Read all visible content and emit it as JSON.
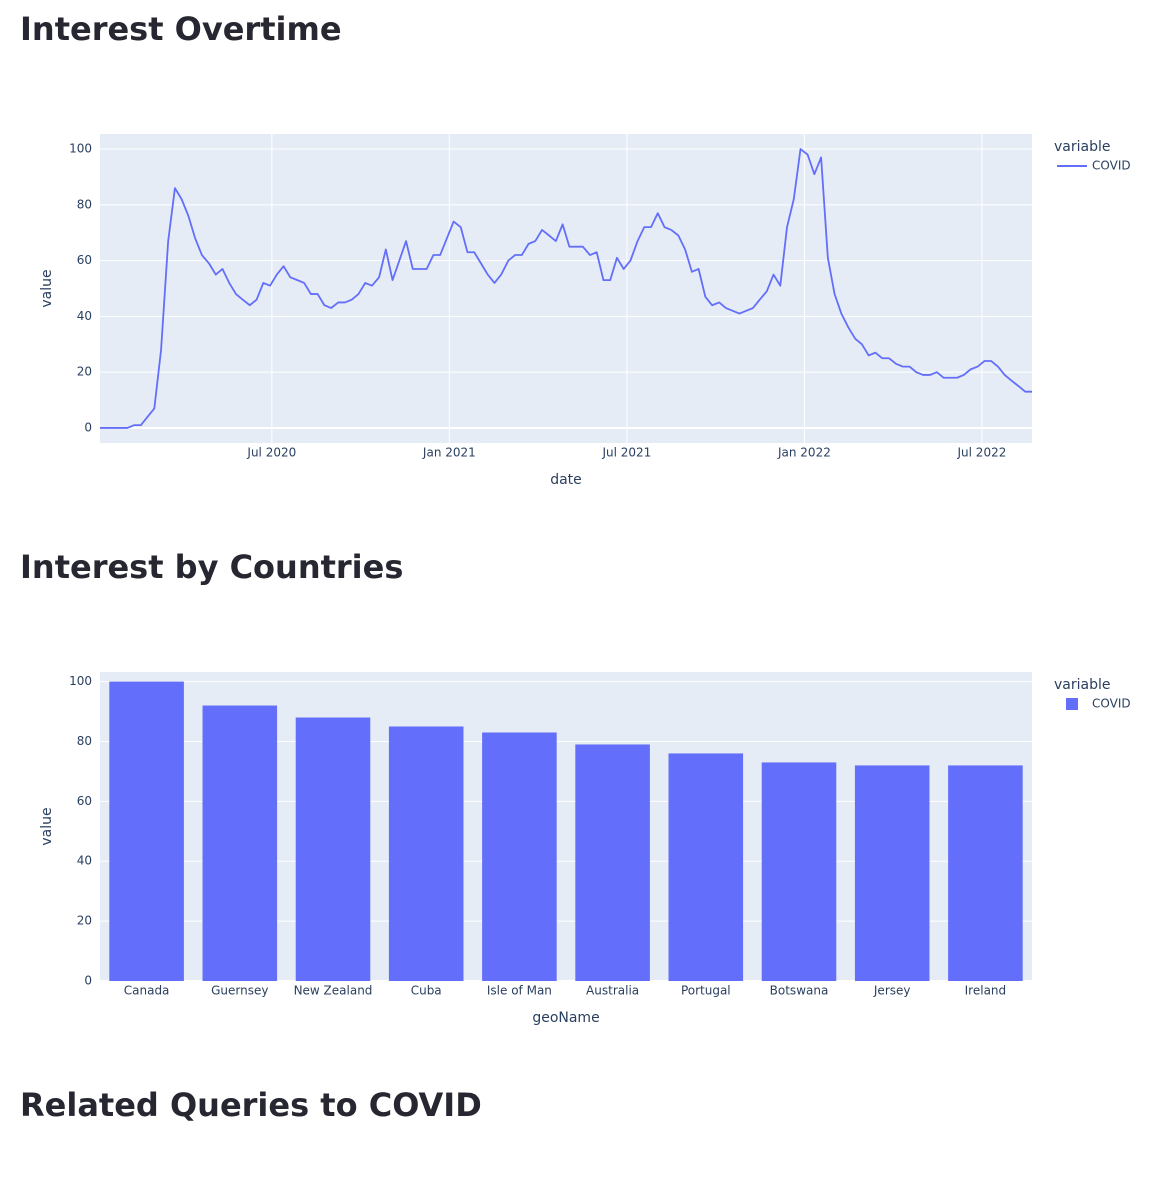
{
  "page": {
    "headings": [
      "Interest Overtime",
      "Interest by Countries",
      "Related Queries to COVID"
    ]
  },
  "chart_data": [
    {
      "type": "line",
      "xlabel": "date",
      "ylabel": "value",
      "legend_title": "variable",
      "x": [
        2020.016,
        2020.035,
        2020.054,
        2020.073,
        2020.093,
        2020.112,
        2020.131,
        2020.15,
        2020.169,
        2020.188,
        2020.208,
        2020.227,
        2020.246,
        2020.265,
        2020.284,
        2020.303,
        2020.323,
        2020.342,
        2020.361,
        2020.38,
        2020.399,
        2020.418,
        2020.438,
        2020.457,
        2020.476,
        2020.495,
        2020.514,
        2020.533,
        2020.552,
        2020.572,
        2020.591,
        2020.61,
        2020.629,
        2020.648,
        2020.667,
        2020.687,
        2020.706,
        2020.725,
        2020.744,
        2020.763,
        2020.782,
        2020.802,
        2020.821,
        2020.84,
        2020.859,
        2020.878,
        2020.897,
        2020.917,
        2020.936,
        2020.955,
        2020.974,
        2020.993,
        2021.012,
        2021.032,
        2021.051,
        2021.07,
        2021.089,
        2021.108,
        2021.127,
        2021.146,
        2021.166,
        2021.185,
        2021.204,
        2021.223,
        2021.242,
        2021.261,
        2021.281,
        2021.3,
        2021.319,
        2021.338,
        2021.357,
        2021.376,
        2021.396,
        2021.415,
        2021.434,
        2021.453,
        2021.472,
        2021.491,
        2021.51,
        2021.53,
        2021.549,
        2021.568,
        2021.587,
        2021.606,
        2021.625,
        2021.645,
        2021.664,
        2021.683,
        2021.702,
        2021.721,
        2021.74,
        2021.76,
        2021.779,
        2021.798,
        2021.817,
        2021.836,
        2021.855,
        2021.874,
        2021.894,
        2021.913,
        2021.932,
        2021.951,
        2021.97,
        2021.989,
        2022.009,
        2022.028,
        2022.047,
        2022.066,
        2022.085,
        2022.104,
        2022.124,
        2022.143,
        2022.162,
        2022.181,
        2022.2,
        2022.219,
        2022.238,
        2022.258,
        2022.277,
        2022.296,
        2022.315,
        2022.334,
        2022.354,
        2022.373,
        2022.392,
        2022.411,
        2022.43,
        2022.449,
        2022.468,
        2022.488,
        2022.507,
        2022.526,
        2022.545,
        2022.564,
        2022.583,
        2022.603,
        2022.622,
        2022.641
      ],
      "series": [
        {
          "name": "COVID",
          "color": "#636efa",
          "values": [
            0,
            0,
            0,
            0,
            0,
            1,
            1,
            4,
            7,
            28,
            67,
            86,
            82,
            76,
            68,
            62,
            59,
            55,
            57,
            52,
            48,
            46,
            44,
            46,
            52,
            51,
            55,
            58,
            54,
            53,
            52,
            48,
            48,
            44,
            43,
            45,
            45,
            46,
            48,
            52,
            51,
            54,
            64,
            53,
            60,
            67,
            57,
            57,
            57,
            62,
            62,
            68,
            74,
            72,
            63,
            63,
            59,
            55,
            52,
            55,
            60,
            62,
            62,
            66,
            67,
            71,
            69,
            67,
            73,
            65,
            65,
            65,
            62,
            63,
            53,
            53,
            61,
            57,
            60,
            67,
            72,
            72,
            77,
            72,
            71,
            69,
            64,
            56,
            57,
            47,
            44,
            45,
            43,
            42,
            41,
            42,
            43,
            46,
            49,
            55,
            51,
            72,
            82,
            100,
            98,
            91,
            97,
            61,
            48,
            41,
            36,
            32,
            30,
            26,
            27,
            25,
            25,
            23,
            22,
            22,
            20,
            19,
            19,
            20,
            18,
            18,
            18,
            19,
            21,
            22,
            24,
            24,
            22,
            19,
            17,
            15,
            13,
            13
          ]
        }
      ],
      "xlim": [
        2020.016,
        2022.641
      ],
      "xticks": [
        {
          "value": 2020.5,
          "label": "Jul 2020"
        },
        {
          "value": 2021.0,
          "label": "Jan 2021"
        },
        {
          "value": 2021.5,
          "label": "Jul 2021"
        },
        {
          "value": 2022.0,
          "label": "Jan 2022"
        },
        {
          "value": 2022.5,
          "label": "Jul 2022"
        }
      ],
      "ylim": [
        -5.4,
        105.4
      ],
      "yticks": [
        0,
        20,
        40,
        60,
        80,
        100
      ],
      "grid": true
    },
    {
      "type": "bar",
      "xlabel": "geoName",
      "ylabel": "value",
      "legend_title": "variable",
      "categories": [
        "Canada",
        "Guernsey",
        "New Zealand",
        "Cuba",
        "Isle of Man",
        "Australia",
        "Portugal",
        "Botswana",
        "Jersey",
        "Ireland"
      ],
      "series": [
        {
          "name": "COVID",
          "color": "#636efa",
          "values": [
            100,
            92,
            88,
            85,
            83,
            79,
            76,
            73,
            72,
            72
          ]
        }
      ],
      "ylim": [
        0,
        103.2
      ],
      "yticks": [
        0,
        20,
        40,
        60,
        80,
        100
      ],
      "grid": true
    }
  ]
}
